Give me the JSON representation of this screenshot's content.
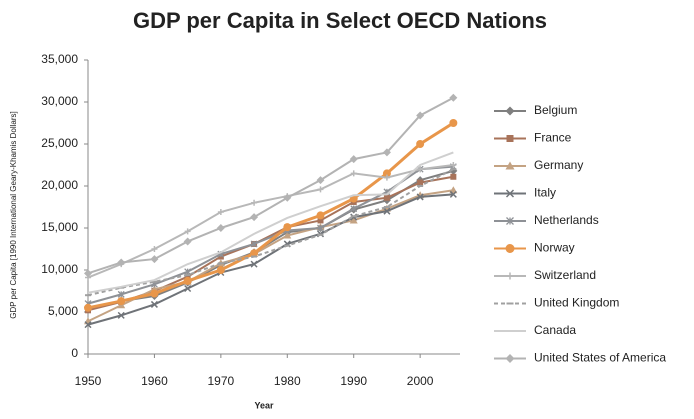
{
  "chart_data": {
    "type": "line",
    "title": "GDP per Capita in Select OECD Nations",
    "x_label": "Year",
    "y_label": "GDP per Capita [1990 International Geary-Khamis Dollars]",
    "x": [
      1950,
      1955,
      1960,
      1965,
      1970,
      1975,
      1980,
      1985,
      1990,
      1995,
      2000,
      2005
    ],
    "xlim": [
      1950,
      2006
    ],
    "xticks": [
      1950,
      1960,
      1970,
      1980,
      1990,
      2000
    ],
    "ylim": [
      0,
      35000
    ],
    "yticks": [
      {
        "value": 0,
        "label": "0"
      },
      {
        "value": 5000,
        "label": "5,000"
      },
      {
        "value": 10000,
        "label": "10,000"
      },
      {
        "value": 15000,
        "label": "15,000"
      },
      {
        "value": 20000,
        "label": "20,000"
      },
      {
        "value": 25000,
        "label": "25,000"
      },
      {
        "value": 30000,
        "label": "30,000"
      },
      {
        "value": 35000,
        "label": "35,000"
      }
    ],
    "legend": "right",
    "series": [
      {
        "name": "Belgium",
        "color": "#7f7f7f",
        "marker": "diamond",
        "values": [
          5500,
          6300,
          6900,
          8500,
          10600,
          12100,
          14500,
          15000,
          17200,
          18300,
          20700,
          21800
        ]
      },
      {
        "name": "France",
        "color": "#a8735a",
        "marker": "square",
        "values": [
          5200,
          6200,
          7500,
          9200,
          11600,
          13100,
          15100,
          15900,
          18100,
          18600,
          20400,
          21100
        ]
      },
      {
        "name": "Germany",
        "color": "#c4a383",
        "marker": "triangle",
        "values": [
          3900,
          5800,
          7700,
          8600,
          10800,
          11900,
          14100,
          15100,
          15900,
          17300,
          18900,
          19500
        ]
      },
      {
        "name": "Italy",
        "color": "#6f7378",
        "marker": "x",
        "values": [
          3500,
          4600,
          5900,
          7800,
          9700,
          10700,
          13100,
          14300,
          16300,
          17000,
          18700,
          19000
        ]
      },
      {
        "name": "Netherlands",
        "color": "#8e9196",
        "marker": "star",
        "values": [
          6000,
          7100,
          8300,
          9800,
          11900,
          13100,
          14700,
          15000,
          17300,
          19300,
          22000,
          22300
        ]
      },
      {
        "name": "Norway",
        "color": "#e8964a",
        "marker": "circle",
        "values": [
          5500,
          6300,
          7200,
          8700,
          10000,
          12000,
          15100,
          16500,
          18500,
          21500,
          25000,
          27500
        ]
      },
      {
        "name": "Switzerland",
        "color": "#b8b8b8",
        "marker": "plus",
        "values": [
          9100,
          10700,
          12500,
          14600,
          16900,
          18000,
          18800,
          19600,
          21500,
          21000,
          22000,
          22500
        ]
      },
      {
        "name": "United Kingdom",
        "color": "#a0a0a0",
        "marker": "dash",
        "values": [
          7000,
          7900,
          8600,
          9400,
          10800,
          11600,
          12900,
          14200,
          16400,
          17500,
          20000,
          22000
        ]
      },
      {
        "name": "Canada",
        "color": "#cfcfcf",
        "marker": "none",
        "values": [
          7300,
          8000,
          8800,
          10700,
          12100,
          14300,
          16200,
          17600,
          18900,
          19000,
          22500,
          24000
        ]
      },
      {
        "name": "United States of America",
        "color": "#b3b3b3",
        "marker": "diamond",
        "values": [
          9600,
          10900,
          11300,
          13400,
          15000,
          16300,
          18600,
          20700,
          23200,
          24000,
          28400,
          30500
        ]
      }
    ]
  }
}
